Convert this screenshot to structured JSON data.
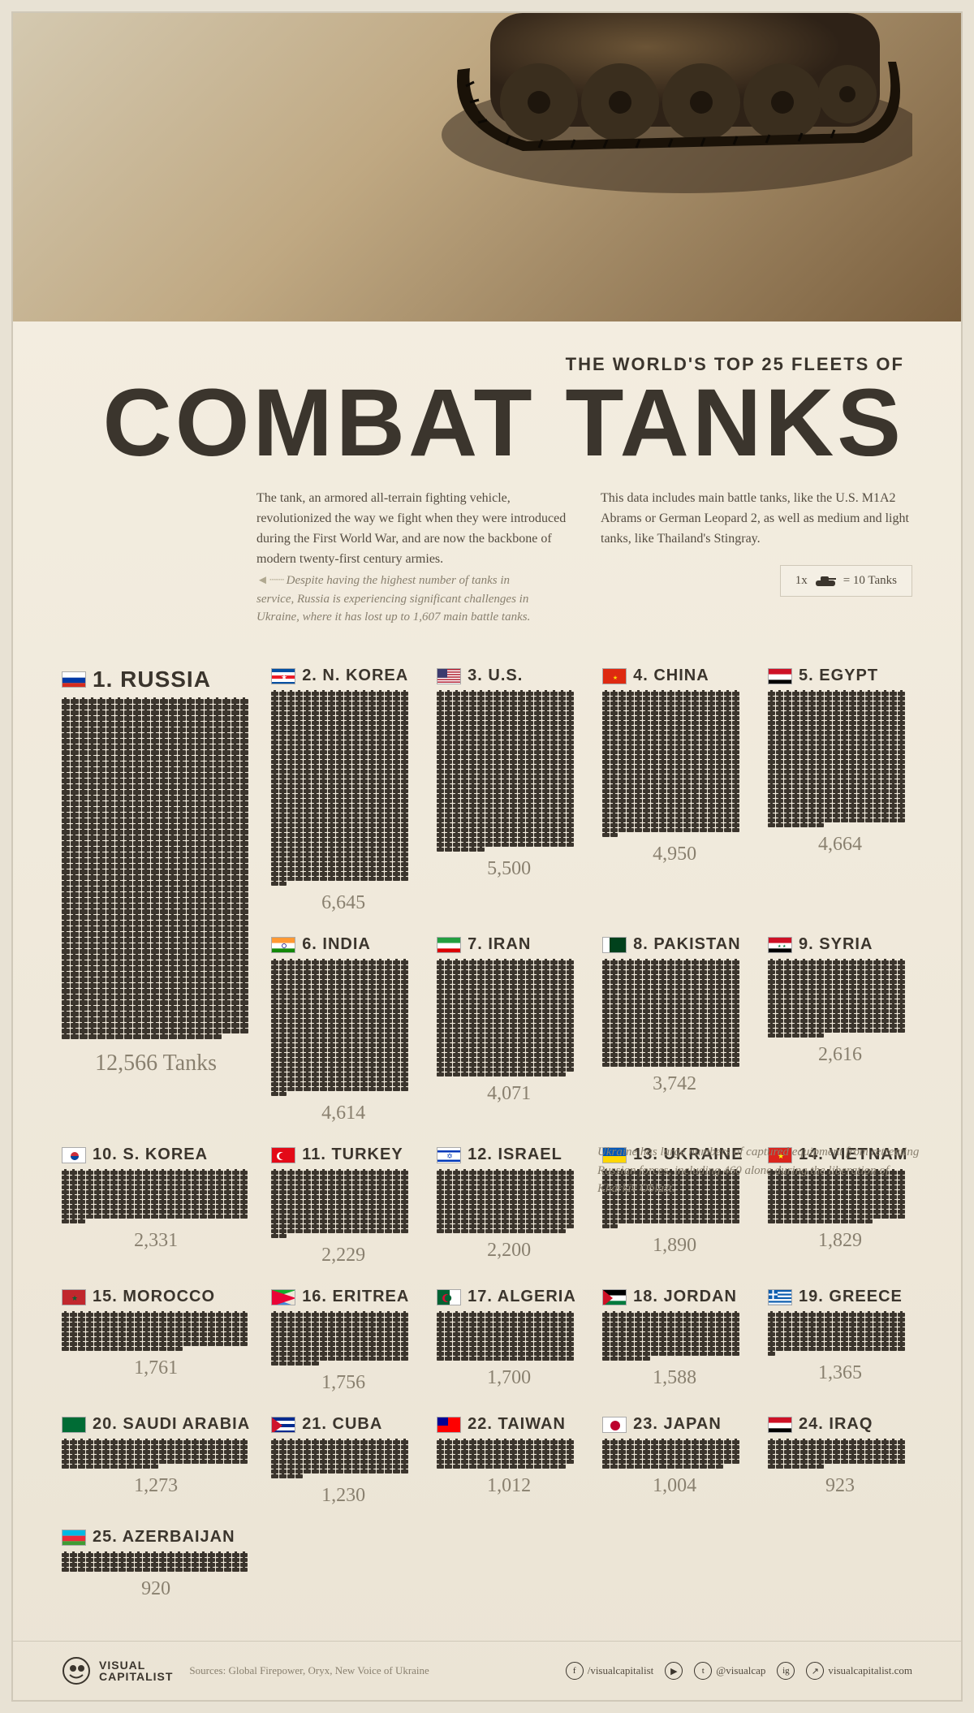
{
  "kicker": "THE WORLD'S TOP 25 FLEETS OF",
  "title": "COMBAT TANKS",
  "intro": {
    "left": "The tank, an armored all-terrain fighting vehicle, revolutionized the way we fight when they were introduced during the First World War, and are now the backbone of modern twenty-first century armies.",
    "right": "This data includes main battle tanks, like the U.S. M1A2 Abrams or German Leopard 2, as well as medium and light tanks, like Thailand's Stingray."
  },
  "notes": {
    "russia": "Despite having the highest number of tanks in service, Russia is experiencing significant challenges in Ukraine, where it has lost up to 1,607 main battle tanks.",
    "ukraine": "Ukraine has large numbers of captured equipment from retreating Russian forces, including 460 alone during the liberation of Kharkiv Oblast."
  },
  "legend": {
    "prefix": "1x",
    "suffix": "= 10 Tanks"
  },
  "unit_label": "Tanks",
  "pictogram": {
    "unit_value": 10,
    "icon_color": "#3b352d"
  },
  "colors": {
    "background": "#e8e2d4",
    "text_dark": "#3b352d",
    "text_muted": "#89806f",
    "border": "#cfc8b8"
  },
  "countries": [
    {
      "rank": 1,
      "name": "RUSSIA",
      "tanks": 12566,
      "featured": true,
      "flag": {
        "stripes": [
          "#ffffff",
          "#0039a6",
          "#d52b1e"
        ],
        "dir": "h"
      }
    },
    {
      "rank": 2,
      "name": "N. KOREA",
      "tanks": 6645,
      "flag": {
        "stripes": [
          "#024fa2",
          "#ffffff",
          "#ed1c27",
          "#ffffff",
          "#024fa2"
        ],
        "dir": "h",
        "star": "#ffffff"
      }
    },
    {
      "rank": 3,
      "name": "U.S.",
      "tanks": 5500,
      "flag": {
        "us": true
      }
    },
    {
      "rank": 4,
      "name": "CHINA",
      "tanks": 4950,
      "flag": {
        "bg": "#de2910",
        "star": "#ffde00"
      }
    },
    {
      "rank": 5,
      "name": "EGYPT",
      "tanks": 4664,
      "flag": {
        "stripes": [
          "#ce1126",
          "#ffffff",
          "#000000"
        ],
        "dir": "h"
      }
    },
    {
      "rank": 6,
      "name": "INDIA",
      "tanks": 4614,
      "flag": {
        "stripes": [
          "#ff9933",
          "#ffffff",
          "#138808"
        ],
        "dir": "h",
        "wheel": "#000080"
      }
    },
    {
      "rank": 7,
      "name": "IRAN",
      "tanks": 4071,
      "flag": {
        "stripes": [
          "#239f40",
          "#ffffff",
          "#da0000"
        ],
        "dir": "h"
      }
    },
    {
      "rank": 8,
      "name": "PAKISTAN",
      "tanks": 3742,
      "flag": {
        "bg": "#01411c",
        "leftbar": "#ffffff"
      }
    },
    {
      "rank": 9,
      "name": "SYRIA",
      "tanks": 2616,
      "flag": {
        "stripes": [
          "#ce1126",
          "#ffffff",
          "#000000"
        ],
        "dir": "h",
        "stars": "#007a3d"
      }
    },
    {
      "rank": 10,
      "name": "S. KOREA",
      "tanks": 2331,
      "flag": {
        "bg": "#ffffff",
        "circle": [
          "#cd2e3a",
          "#0047a0"
        ]
      }
    },
    {
      "rank": 11,
      "name": "TURKEY",
      "tanks": 2229,
      "flag": {
        "bg": "#e30a17",
        "moon": "#ffffff"
      }
    },
    {
      "rank": 12,
      "name": "ISRAEL",
      "tanks": 2200,
      "flag": {
        "bg": "#ffffff",
        "bars": "#0038b8"
      }
    },
    {
      "rank": 13,
      "name": "UKRAINE",
      "tanks": 1890,
      "flag": {
        "stripes": [
          "#0057b7",
          "#ffd700"
        ],
        "dir": "h"
      }
    },
    {
      "rank": 14,
      "name": "VIETNAM",
      "tanks": 1829,
      "flag": {
        "bg": "#da251d",
        "star": "#ffff00"
      }
    },
    {
      "rank": 15,
      "name": "MOROCCO",
      "tanks": 1761,
      "flag": {
        "bg": "#c1272d",
        "star": "#006233"
      }
    },
    {
      "rank": 16,
      "name": "ERITREA",
      "tanks": 1756,
      "flag": {
        "tri": [
          "#12ad2b",
          "#ea0437",
          "#4189dd"
        ]
      }
    },
    {
      "rank": 17,
      "name": "ALGERIA",
      "tanks": 1700,
      "flag": {
        "halves": [
          "#006233",
          "#ffffff"
        ],
        "moon": "#d21034"
      }
    },
    {
      "rank": 18,
      "name": "JORDAN",
      "tanks": 1588,
      "flag": {
        "stripes": [
          "#000000",
          "#ffffff",
          "#007a3d"
        ],
        "dir": "h",
        "tri": "#ce1126"
      }
    },
    {
      "rank": 19,
      "name": "GREECE",
      "tanks": 1365,
      "flag": {
        "gr": true
      }
    },
    {
      "rank": 20,
      "name": "SAUDI ARABIA",
      "tanks": 1273,
      "flag": {
        "bg": "#006c35"
      }
    },
    {
      "rank": 21,
      "name": "CUBA",
      "tanks": 1230,
      "flag": {
        "cu": true
      }
    },
    {
      "rank": 22,
      "name": "TAIWAN",
      "tanks": 1012,
      "flag": {
        "bg": "#fe0000",
        "canton": "#000095"
      }
    },
    {
      "rank": 23,
      "name": "JAPAN",
      "tanks": 1004,
      "flag": {
        "bg": "#ffffff",
        "disc": "#bc002d"
      }
    },
    {
      "rank": 24,
      "name": "IRAQ",
      "tanks": 923,
      "flag": {
        "stripes": [
          "#ce1126",
          "#ffffff",
          "#000000"
        ],
        "dir": "h"
      }
    },
    {
      "rank": 25,
      "name": "AZERBAIJAN",
      "tanks": 920,
      "flag": {
        "stripes": [
          "#00b9e4",
          "#ed2939",
          "#3f9c35"
        ],
        "dir": "h"
      }
    }
  ],
  "footer": {
    "brand_top": "VISUAL",
    "brand_bottom": "CAPITALIST",
    "sources_label": "Sources:",
    "sources": "Global Firepower, Oryx, New Voice of Ukraine",
    "social": [
      {
        "icon": "f",
        "handle": "/visualcapitalist"
      },
      {
        "icon": "▶",
        "handle": ""
      },
      {
        "icon": "t",
        "handle": "@visualcap"
      },
      {
        "icon": "ig",
        "handle": ""
      },
      {
        "icon": "↗",
        "handle": "visualcapitalist.com"
      }
    ]
  }
}
